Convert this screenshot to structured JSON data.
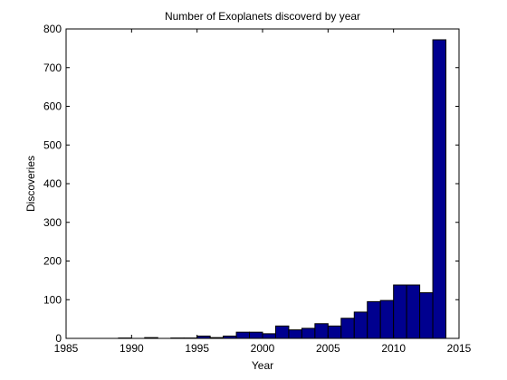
{
  "chart_data": {
    "type": "bar",
    "title": "Number of Exoplanets discoverd by year",
    "xlabel": "Year",
    "ylabel": "Discoveries",
    "xlim": [
      1985,
      2015
    ],
    "ylim": [
      0,
      800
    ],
    "xticks": [
      1985,
      1990,
      1995,
      2000,
      2005,
      2010,
      2015
    ],
    "yticks": [
      0,
      100,
      200,
      300,
      400,
      500,
      600,
      700,
      800
    ],
    "bin_width": 1,
    "grid": false,
    "bar_color": "#00008f",
    "x": [
      1989,
      1990,
      1991,
      1992,
      1993,
      1994,
      1995,
      1996,
      1997,
      1998,
      1999,
      2000,
      2001,
      2002,
      2003,
      2004,
      2005,
      2006,
      2007,
      2008,
      2009,
      2010,
      2011,
      2012,
      2013
    ],
    "values": [
      1,
      0,
      2,
      0,
      1,
      1,
      6,
      2,
      6,
      16,
      16,
      12,
      32,
      22,
      26,
      38,
      32,
      52,
      68,
      95,
      98,
      138,
      138,
      118,
      772
    ]
  }
}
